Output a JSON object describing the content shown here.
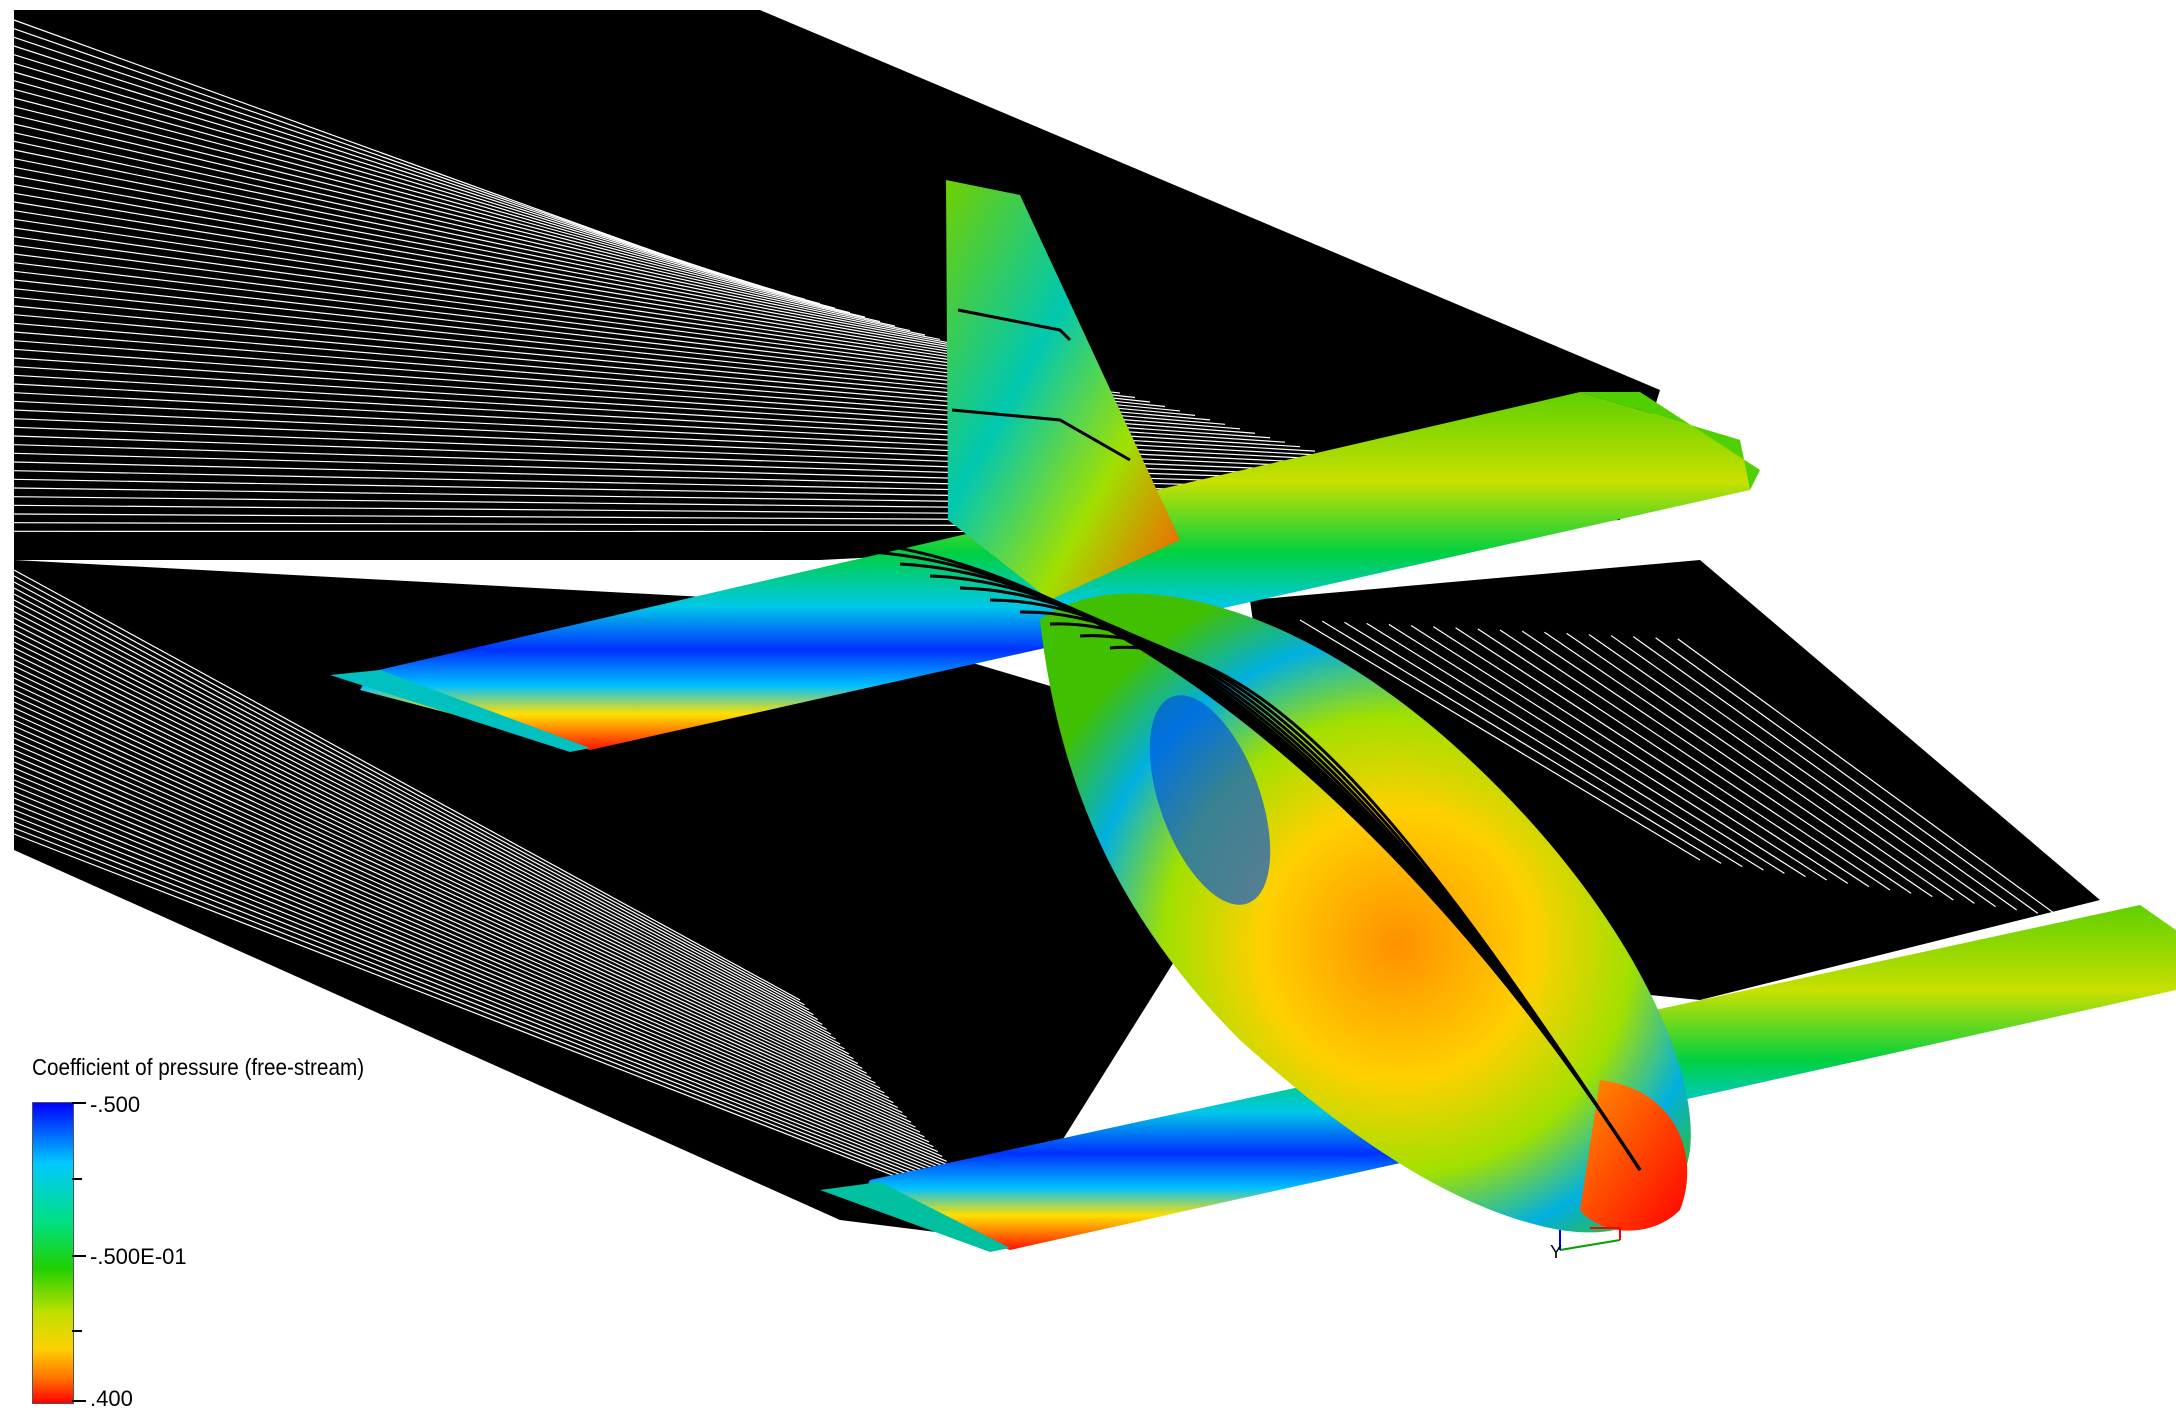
{
  "legend": {
    "title": "Coefficient of pressure (free-stream)",
    "ticks": [
      {
        "label": "-.500",
        "value": -0.5
      },
      {
        "label": "-.500E-01",
        "value": -0.05
      },
      {
        "label": ".400",
        "value": 0.4
      }
    ],
    "colormap": [
      "#0000ff",
      "#00a0ff",
      "#00e0c0",
      "#00d000",
      "#a0e000",
      "#ffe000",
      "#ff9000",
      "#ff0000"
    ]
  },
  "axis_triad": {
    "label": "Y"
  }
}
